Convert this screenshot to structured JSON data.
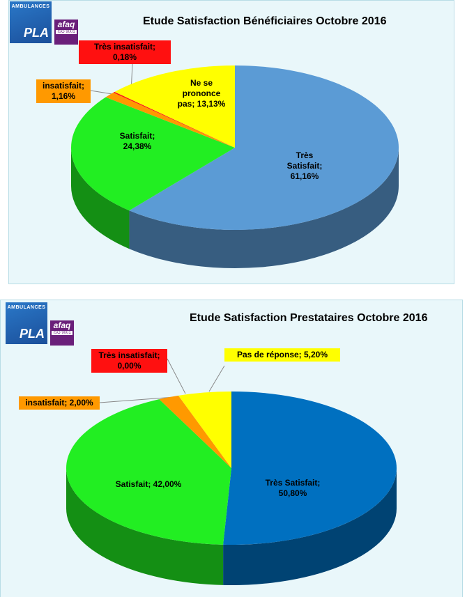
{
  "logo": {
    "top": "AMBULANCES",
    "name": "PLA",
    "cert": "afaq",
    "iso": "ISO 9001"
  },
  "chart_data": [
    {
      "type": "pie3d",
      "title": "Etude Satisfaction Bénéficiaires Octobre 2016",
      "categories": [
        "Très Satisfait",
        "Satisfait",
        "insatisfait",
        "Très insatisfait",
        "Ne se prononce pas"
      ],
      "values": [
        61.16,
        24.38,
        1.16,
        0.18,
        13.13
      ],
      "value_labels": [
        "Très Satisfait; 61,16%",
        "Satisfait; 24,38%",
        "insatisfait; 1,16%",
        "Très insatisfait; 0,18%",
        "Ne se prononce pas; 13,13%"
      ],
      "colors": [
        "#5b9bd5",
        "#22ee22",
        "#ff9900",
        "#ff1010",
        "#ffff00"
      ]
    },
    {
      "type": "pie3d",
      "title": "Etude Satisfaction Prestataires Octobre 2016",
      "categories": [
        "Très Satisfait",
        "Satisfait",
        "insatisfait",
        "Très insatisfait",
        "Pas de réponse"
      ],
      "values": [
        50.8,
        42,
        2,
        0,
        5.2
      ],
      "value_labels": [
        "Très Satisfait; 50,80%",
        "Satisfait; 42,00%",
        "insatisfait; 2,00%",
        "Très insatisfait; 0,00%",
        "Pas de réponse; 5,20%"
      ],
      "colors": [
        "#0070c0",
        "#22ee22",
        "#ff9900",
        "#ff1010",
        "#ffff00"
      ]
    }
  ]
}
